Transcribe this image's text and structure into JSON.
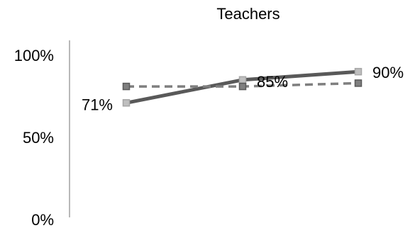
{
  "chart_data": {
    "type": "line",
    "title": "Teachers",
    "xlabel": "",
    "ylabel": "",
    "x": [
      "1",
      "2",
      "3"
    ],
    "ylim": [
      0,
      100
    ],
    "y_ticks": [
      {
        "value": 0,
        "label": "0%"
      },
      {
        "value": 50,
        "label": "50%"
      },
      {
        "value": 100,
        "label": "100%"
      }
    ],
    "grid": false,
    "legend": "none",
    "series": [
      {
        "values": [
          71,
          85,
          90
        ],
        "data_labels": [
          "71%",
          "85%",
          "90%"
        ],
        "line_color": "#595959",
        "dashed": false,
        "marker_color": "#a6a6a6",
        "marker_fill": "#bfbfbf"
      },
      {
        "values": [
          81,
          81,
          83
        ],
        "data_labels": [
          "",
          "",
          ""
        ],
        "line_color": "#7f7f7f",
        "dashed": true,
        "marker_color": "#595959",
        "marker_fill": "#7f7f7f"
      }
    ]
  }
}
